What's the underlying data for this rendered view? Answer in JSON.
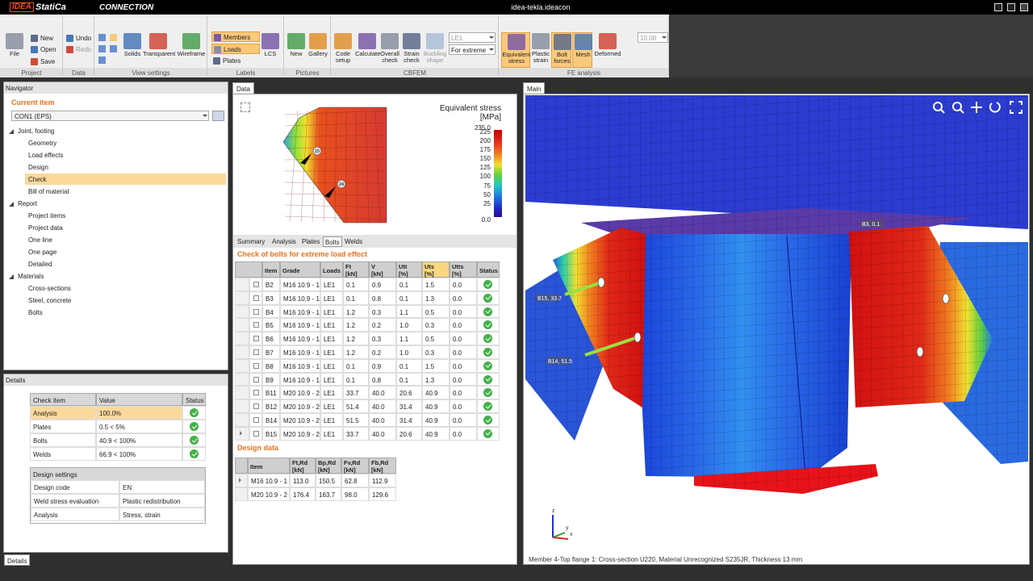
{
  "title_bar": {
    "brand": "IDEA",
    "product": "StatiCa",
    "module": "CONNECTION",
    "file": "idea-tekla.ideacon"
  },
  "ribbon": {
    "groups": [
      {
        "label": "Project",
        "items": [
          "File",
          "New",
          "Open",
          "Save"
        ]
      },
      {
        "label": "Data",
        "items": [
          "Undo",
          "Redo"
        ]
      },
      {
        "label": "View settings",
        "items": [
          "Solids",
          "Transparent",
          "Wireframe"
        ]
      },
      {
        "label": "Labels",
        "items": [
          "Members",
          "Loads",
          "Plates",
          "LCS"
        ]
      },
      {
        "label": "Pictures",
        "items": [
          "New",
          "Gallery"
        ]
      },
      {
        "label": "CBFEM",
        "items": [
          "Code setup",
          "Calculate",
          "Overall check",
          "Strain check",
          "Buckling shape",
          "LE1",
          "For extreme"
        ]
      },
      {
        "label": "FE analysis",
        "items": [
          "Equivalent stress",
          "Plastic strain",
          "Bolt forces",
          "Mesh",
          "Deformed",
          "10.00"
        ]
      }
    ]
  },
  "navigator": {
    "title": "Navigator",
    "current_item": "Current item",
    "connection": "CON1 (EPS)",
    "tree": [
      {
        "label": "Joint, footing",
        "items": [
          "Geometry",
          "Load effects",
          "Design",
          "Check",
          "Bill of material"
        ]
      },
      {
        "label": "Report",
        "items": [
          "Project items",
          "Project data",
          "One line",
          "One page",
          "Detailed"
        ]
      },
      {
        "label": "Materials",
        "items": [
          "Cross-sections",
          "Steel, concrete",
          "Bolts"
        ]
      }
    ]
  },
  "details": {
    "title": "Details",
    "check": {
      "headers": [
        "Check item",
        "Value",
        "Status"
      ],
      "rows": [
        [
          "Analysis",
          "100.0%"
        ],
        [
          "Plates",
          "0.5 < 5%"
        ],
        [
          "Bolts",
          "40.9 < 100%"
        ],
        [
          "Welds",
          "66.9 < 100%"
        ]
      ]
    },
    "settings": {
      "header": "Design settings",
      "rows": [
        [
          "Design code",
          "EN"
        ],
        [
          "Weld stress evaluation",
          "Plastic redistribution"
        ],
        [
          "Analysis",
          "Stress, strain"
        ]
      ]
    },
    "tab": "Details"
  },
  "data_panel": {
    "tab": "Data",
    "legend": {
      "title": "Equivalent stress",
      "unit": "[MPa]",
      "ticks": [
        "235.0",
        "225",
        "200",
        "175",
        "150",
        "125",
        "100",
        "75",
        "50",
        "25",
        "0.0"
      ]
    },
    "bolt_markers": [
      "15",
      "24"
    ],
    "tabs": [
      "Summary",
      "Analysis",
      "Plates",
      "Bolts",
      "Welds"
    ],
    "bolts": {
      "title": "Check of bolts for extreme load effect",
      "headers": [
        [
          "Item"
        ],
        [
          "Grade"
        ],
        [
          "Loads"
        ],
        [
          "Ft",
          "[kN]"
        ],
        [
          "V",
          "[kN]"
        ],
        [
          "Utt",
          "[%]"
        ],
        [
          "Uts",
          "[%]"
        ],
        [
          "Utts",
          "[%]"
        ],
        [
          "Status"
        ]
      ],
      "rows": [
        [
          "B2",
          "M16 10.9 - 1",
          "LE1",
          "0.1",
          "0.9",
          "0.1",
          "1.5",
          "0.0"
        ],
        [
          "B3",
          "M16 10.9 - 1",
          "LE1",
          "0.1",
          "0.8",
          "0.1",
          "1.3",
          "0.0"
        ],
        [
          "B4",
          "M16 10.9 - 1",
          "LE1",
          "1.2",
          "0.3",
          "1.1",
          "0.5",
          "0.0"
        ],
        [
          "B5",
          "M16 10.9 - 1",
          "LE1",
          "1.2",
          "0.2",
          "1.0",
          "0.3",
          "0.0"
        ],
        [
          "B6",
          "M16 10.9 - 1",
          "LE1",
          "1.2",
          "0.3",
          "1.1",
          "0.5",
          "0.0"
        ],
        [
          "B7",
          "M16 10.9 - 1",
          "LE1",
          "1.2",
          "0.2",
          "1.0",
          "0.3",
          "0.0"
        ],
        [
          "B8",
          "M16 10.9 - 1",
          "LE1",
          "0.1",
          "0.9",
          "0.1",
          "1.5",
          "0.0"
        ],
        [
          "B9",
          "M16 10.9 - 1",
          "LE1",
          "0.1",
          "0.8",
          "0.1",
          "1.3",
          "0.0"
        ],
        [
          "B11",
          "M20 10.9 - 2",
          "LE1",
          "33.7",
          "40.0",
          "20.6",
          "40.9",
          "0.0"
        ],
        [
          "B12",
          "M20 10.9 - 2",
          "LE1",
          "51.4",
          "40.0",
          "31.4",
          "40.9",
          "0.0"
        ],
        [
          "B14",
          "M20 10.9 - 2",
          "LE1",
          "51.5",
          "40.0",
          "31.4",
          "40.9",
          "0.0"
        ],
        [
          "B15",
          "M20 10.9 - 2",
          "LE1",
          "33.7",
          "40.0",
          "20.6",
          "40.9",
          "0.0"
        ]
      ]
    },
    "design_data": {
      "title": "Design data",
      "headers": [
        [
          "Item"
        ],
        [
          "Ft,Rd",
          "[kN]"
        ],
        [
          "Bp,Rd",
          "[kN]"
        ],
        [
          "Fv,Rd",
          "[kN]"
        ],
        [
          "Fb,Rd",
          "[kN]"
        ]
      ],
      "rows": [
        [
          "M16 10.9 - 1",
          "113.0",
          "150.5",
          "62.8",
          "112.9"
        ],
        [
          "M20 10.9 - 2",
          "176.4",
          "163.7",
          "98.0",
          "129.6"
        ]
      ]
    }
  },
  "main": {
    "tab": "Main",
    "labels": [
      "B15, 33.7",
      "B14, 51.5",
      "B3, 0.1"
    ],
    "axes": [
      "z",
      "y",
      "x"
    ],
    "status": "Member 4-Top flange 1: Cross-section U220, Material Unrecognized S235JR, Thickness 13 mm"
  }
}
